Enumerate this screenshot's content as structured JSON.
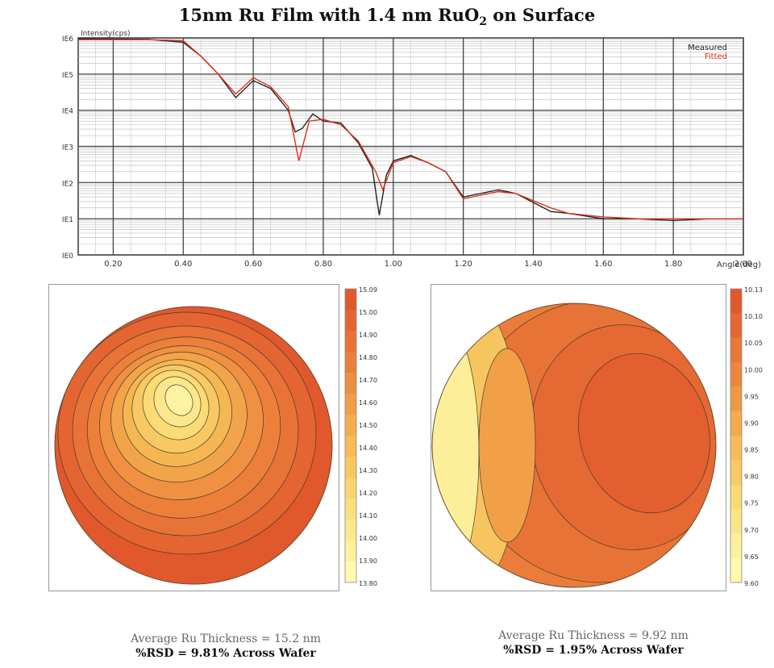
{
  "title": {
    "main": "15nm Ru Film with 1.4 nm RuO",
    "sub": "2",
    "tail": " on Surface"
  },
  "chart_data": [
    {
      "type": "line",
      "ylabel": "Intensity(cps)",
      "xlabel": "Angle(deg)",
      "yscale": "log",
      "ylim": [
        0,
        6
      ],
      "xlim": [
        0.1,
        2.0
      ],
      "xticks": [
        0.2,
        0.4,
        0.6,
        0.8,
        1.0,
        1.2,
        1.4,
        1.6,
        1.8,
        2.0
      ],
      "xtick_labels": [
        "0.20",
        "0.40",
        "0.60",
        "0.80",
        "1.00",
        "1.20",
        "1.40",
        "1.60",
        "1.80",
        "2.00"
      ],
      "ytick_labels": [
        "IE0",
        "IE1",
        "IE2",
        "IE3",
        "IE4",
        "IE5",
        "IE6"
      ],
      "legend": {
        "placement": "top-right"
      },
      "series": [
        {
          "name": "Measured",
          "color": "#222222",
          "x": [
            0.1,
            0.3,
            0.4,
            0.45,
            0.5,
            0.55,
            0.6,
            0.65,
            0.7,
            0.72,
            0.74,
            0.77,
            0.8,
            0.85,
            0.9,
            0.94,
            0.96,
            0.98,
            1.0,
            1.05,
            1.1,
            1.15,
            1.2,
            1.25,
            1.3,
            1.35,
            1.4,
            1.45,
            1.5,
            1.6,
            1.7,
            1.8,
            1.9,
            2.0
          ],
          "y": [
            5.98,
            5.96,
            5.88,
            5.5,
            5.0,
            4.35,
            4.82,
            4.6,
            4.0,
            3.4,
            3.5,
            3.9,
            3.7,
            3.65,
            3.1,
            2.4,
            1.1,
            2.2,
            2.6,
            2.75,
            2.55,
            2.3,
            1.6,
            1.7,
            1.8,
            1.7,
            1.45,
            1.2,
            1.15,
            1.0,
            1.0,
            0.95,
            1.0,
            1.0
          ]
        },
        {
          "name": "Fitted",
          "color": "#e0301e",
          "x": [
            0.1,
            0.3,
            0.4,
            0.45,
            0.5,
            0.55,
            0.6,
            0.65,
            0.7,
            0.73,
            0.76,
            0.8,
            0.85,
            0.9,
            0.95,
            0.97,
            1.0,
            1.05,
            1.1,
            1.15,
            1.2,
            1.25,
            1.3,
            1.35,
            1.4,
            1.45,
            1.5,
            1.6,
            1.7,
            1.8,
            1.9,
            2.0
          ],
          "y": [
            5.95,
            5.95,
            5.92,
            5.5,
            5.0,
            4.45,
            4.9,
            4.65,
            4.1,
            2.6,
            3.7,
            3.75,
            3.6,
            3.15,
            2.3,
            1.8,
            2.55,
            2.72,
            2.55,
            2.3,
            1.55,
            1.65,
            1.75,
            1.7,
            1.5,
            1.3,
            1.15,
            1.05,
            1.0,
            1.0,
            1.0,
            1.0
          ]
        }
      ]
    },
    {
      "type": "heatmap",
      "colorbar_labels": [
        "15.09",
        "15.00",
        "14.90",
        "14.80",
        "14.70",
        "14.60",
        "14.50",
        "14.40",
        "14.30",
        "14.20",
        "14.10",
        "14.00",
        "13.90",
        "13.80"
      ],
      "range": [
        13.8,
        15.09
      ]
    },
    {
      "type": "heatmap",
      "colorbar_labels": [
        "10.13",
        "10.10",
        "10.05",
        "10.00",
        "9.95",
        "9.90",
        "9.85",
        "9.80",
        "9.75",
        "9.70",
        "9.65",
        "9.60"
      ],
      "range": [
        9.6,
        10.13
      ]
    }
  ],
  "captions": {
    "left": {
      "avg": "Average Ru Thickness = 15.2 nm",
      "rsd": "%RSD = 9.81% Across Wafer"
    },
    "right": {
      "avg": "Average Ru Thickness = 9.92 nm",
      "rsd": "%RSD = 1.95% Across Wafer"
    }
  }
}
